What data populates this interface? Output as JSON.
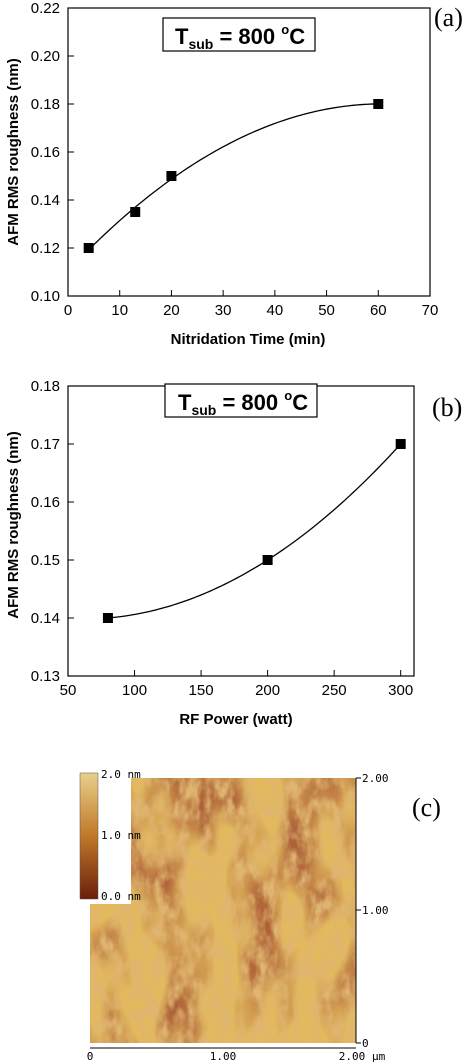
{
  "chart_data": [
    {
      "panel": "(a)",
      "type": "scatter",
      "annotation": {
        "main": "T",
        "sub": "sub",
        "rest": " = 800 ",
        "sup": "o",
        "unit": "C"
      },
      "xlabel": "Nitridation Time (min)",
      "ylabel": "AFM RMS roughness (nm)",
      "xlim": [
        0,
        70
      ],
      "ylim": [
        0.1,
        0.22
      ],
      "xticks": [
        "0",
        "10",
        "20",
        "30",
        "40",
        "50",
        "60",
        "70"
      ],
      "yticks": [
        "0.10",
        "0.12",
        "0.14",
        "0.16",
        "0.18",
        "0.20",
        "0.22"
      ],
      "points": [
        {
          "x": 4,
          "y": 0.12
        },
        {
          "x": 13,
          "y": 0.135
        },
        {
          "x": 20,
          "y": 0.15
        },
        {
          "x": 60,
          "y": 0.18
        }
      ],
      "fit_curve": "quadratic",
      "grid": false
    },
    {
      "panel": "(b)",
      "type": "scatter",
      "annotation": {
        "main": "T",
        "sub": "sub",
        "rest": " = 800 ",
        "sup": "o",
        "unit": "C"
      },
      "xlabel": "RF Power (watt)",
      "ylabel": "AFM RMS roughness (nm)",
      "xlim": [
        50,
        310
      ],
      "ylim": [
        0.13,
        0.18
      ],
      "xticks": [
        "50",
        "100",
        "150",
        "200",
        "250",
        "300"
      ],
      "yticks": [
        "0.13",
        "0.14",
        "0.15",
        "0.16",
        "0.17",
        "0.18"
      ],
      "points": [
        {
          "x": 80,
          "y": 0.14
        },
        {
          "x": 200,
          "y": 0.15
        },
        {
          "x": 300,
          "y": 0.17
        }
      ],
      "fit_curve": "quadratic",
      "grid": false
    }
  ],
  "afm_image": {
    "panel": "(c)",
    "colorbar_labels": [
      "2.0 nm",
      "1.0 nm",
      "0.0 nm"
    ],
    "right_axis_labels": [
      "2.00",
      "1.00",
      "0"
    ],
    "bottom_axis_labels": [
      "0",
      "1.00",
      "2.00"
    ],
    "bottom_axis_unit": "µm",
    "colors": {
      "dark": "#6b1f0a",
      "mid": "#c0782a",
      "light": "#e8d08a"
    }
  }
}
